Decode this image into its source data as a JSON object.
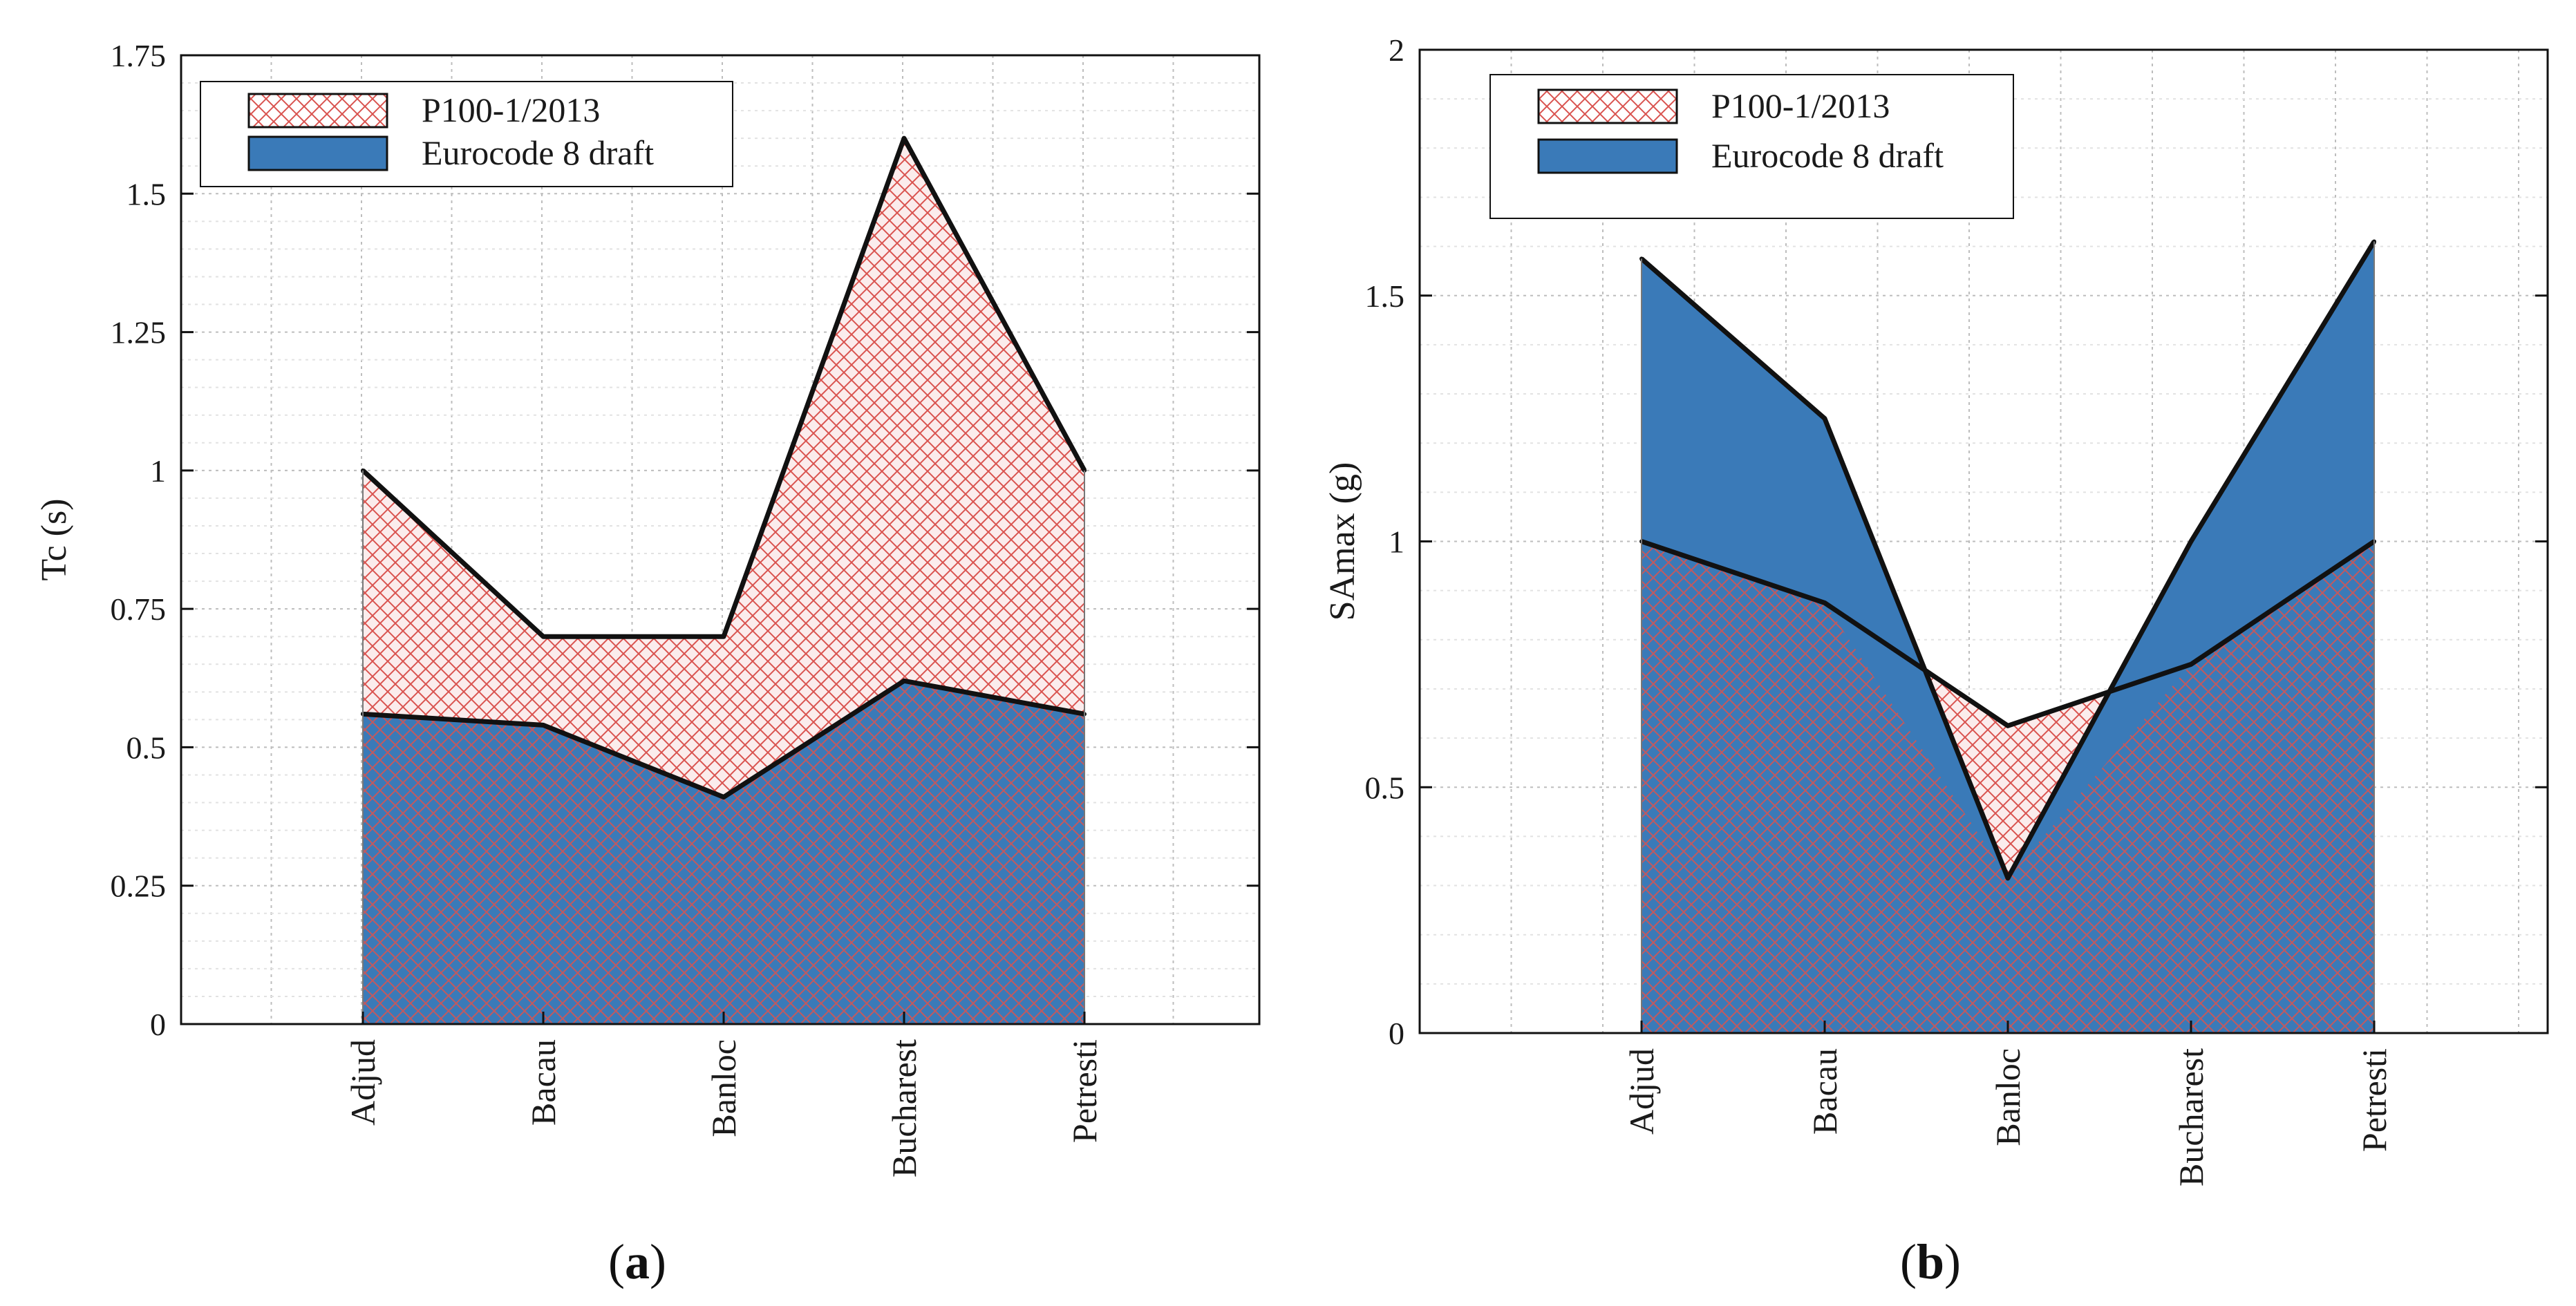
{
  "chart_data": [
    {
      "id": "a",
      "type": "area",
      "title": "",
      "ylabel": "Tc (s)",
      "xlabel": "",
      "categories": [
        "Adjud",
        "Bacau",
        "Banloc",
        "Bucharest",
        "Petresti"
      ],
      "ylim": [
        0,
        1.75
      ],
      "yticks": [
        0,
        0.25,
        0.5,
        0.75,
        1,
        1.25,
        1.5,
        1.75
      ],
      "ytick_labels": [
        "0",
        "0.25",
        "0.5",
        "0.75",
        "1",
        "1.25",
        "1.5",
        "1.75"
      ],
      "grid": true,
      "legend_position": "top-left",
      "series": [
        {
          "name": "P100-1/2013",
          "values": [
            1.0,
            0.7,
            0.7,
            1.6,
            1.0
          ],
          "fill": "hatch",
          "color": "#d9534f"
        },
        {
          "name": "Eurocode 8 draft",
          "values": [
            0.56,
            0.54,
            0.41,
            0.62,
            0.56
          ],
          "fill": "solid",
          "color": "#3a7ab8"
        }
      ],
      "caption": "a"
    },
    {
      "id": "b",
      "type": "area",
      "title": "",
      "ylabel": "SAmax (g)",
      "xlabel": "",
      "categories": [
        "Adjud",
        "Bacau",
        "Banloc",
        "Bucharest",
        "Petresti"
      ],
      "ylim": [
        0,
        2
      ],
      "yticks": [
        0,
        0.5,
        1,
        1.5,
        2
      ],
      "ytick_labels": [
        "0",
        "0.5",
        "1",
        "1.5",
        "2"
      ],
      "grid": true,
      "legend_position": "top-left",
      "series": [
        {
          "name": "P100-1/2013",
          "values": [
            1.0,
            0.875,
            0.625,
            0.75,
            1.0
          ],
          "fill": "hatch",
          "color": "#d9534f"
        },
        {
          "name": "Eurocode 8 draft",
          "values": [
            1.575,
            1.25,
            0.315,
            1.0,
            1.61
          ],
          "fill": "solid",
          "color": "#3a7ab8"
        }
      ],
      "caption": "b"
    }
  ]
}
